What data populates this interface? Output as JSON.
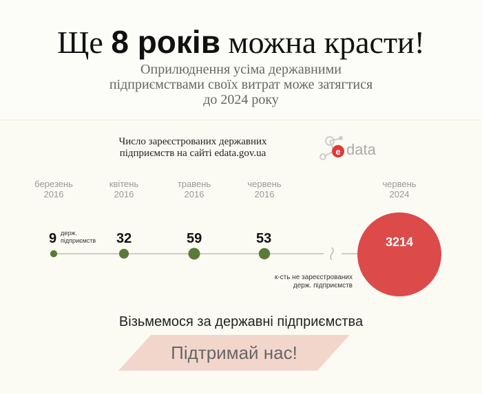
{
  "header": {
    "title_before": "Ще ",
    "title_bold": "8 років",
    "title_after": " можна красти!",
    "subtitle_lines": [
      "Оприлюднення усіма державними",
      "підприємствами своїх витрат може затягтися",
      "до 2024 року"
    ]
  },
  "chart_data": {
    "type": "bubble-timeline",
    "title_lines": [
      "Число зареєстрованих державних",
      "підприємств на сайті edata.gov.ua"
    ],
    "points": [
      {
        "month": "березень",
        "year": "2016",
        "value": 9
      },
      {
        "month": "квітень",
        "year": "2016",
        "value": 32
      },
      {
        "month": "травень",
        "year": "2016",
        "value": 59
      },
      {
        "month": "червень",
        "year": "2016",
        "value": 53
      }
    ],
    "projection": {
      "month": "червень",
      "year": "2024",
      "value": 3214
    },
    "unit_lines": [
      "держ.",
      "підприємств"
    ],
    "projection_note_lines": [
      "к-сть не зареєстрованих",
      "держ. підприємств"
    ],
    "colors": {
      "point": "#5a7a3a",
      "projection": "#dc4a4a",
      "axis": "#bdbdb0"
    }
  },
  "logo": {
    "text": "data"
  },
  "footer": {
    "call_to_action": "Візьмемося за державні підприємства",
    "support_label": "Підтримай нас!"
  }
}
